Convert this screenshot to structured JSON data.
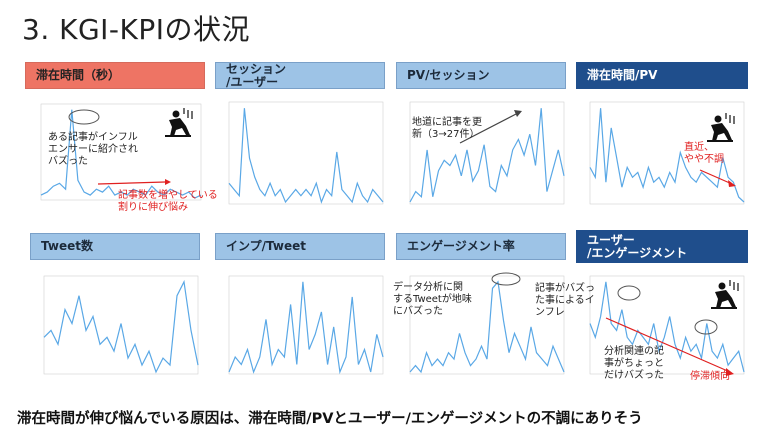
{
  "page": {
    "title": "3. KGI-KPIの状況",
    "footer": "滞在時間が伸び悩んでいる原因は、滞在時間/PVとユーザー/エンゲージメントの不調にありそう"
  },
  "headers": [
    {
      "label": "滞在時間（秒）"
    },
    {
      "label": "セッション\n/ユーザー"
    },
    {
      "label": "PV/セッション"
    },
    {
      "label": "滞在時間/PV"
    },
    {
      "label": "Tweet数"
    },
    {
      "label": "インプ/Tweet"
    },
    {
      "label": "エンゲージメント率"
    },
    {
      "label": "ユーザー\n/エンゲージメント"
    }
  ],
  "annotations": {
    "a1_text": "ある記事がインフル\nエンサーに紹介され\nバズった",
    "a1_red": "記事数を増やしている\n割りに伸び悩み",
    "a3_text": "地道に記事を更\n新（3→27件）",
    "a4_red": "直近、\nやや不調",
    "a7_text1": "データ分析に関\nするTweetが地味\nにバズった",
    "a7_text2": "記事がバズっ\nた事によるイ\nンフレ",
    "a8_text": "分析関連の記\n事がちょっと\nだけバズった",
    "a8_red": "停滞傾向"
  },
  "colors": {
    "line": "#5aa8e6",
    "accent_red": "#e02020",
    "header_light": "#9dc3e6",
    "header_dark": "#1f4e8c",
    "header_red": "#ee7464"
  },
  "icons": [
    "fallen-person-icon",
    "trend-arrow-icon"
  ],
  "chart_data": [
    {
      "type": "line",
      "values": [
        5,
        6,
        8,
        9,
        7,
        34,
        10,
        6,
        5,
        7,
        6,
        8,
        5,
        6,
        5,
        7,
        6,
        5,
        8,
        6,
        5,
        7,
        6,
        5,
        6,
        4,
        5
      ]
    },
    {
      "type": "line",
      "values": [
        6,
        5,
        4,
        18,
        10,
        7,
        5,
        4,
        6,
        4,
        5,
        3,
        4,
        5,
        4,
        5,
        4,
        6,
        3,
        5,
        4,
        11,
        5,
        4,
        3,
        6,
        4,
        3,
        5,
        4,
        3
      ]
    },
    {
      "type": "line",
      "values": [
        4,
        6,
        5,
        14,
        5,
        10,
        12,
        11,
        13,
        9,
        14,
        8,
        10,
        15,
        7,
        6,
        11,
        9,
        14,
        16,
        13,
        17,
        11,
        22,
        6,
        10,
        14,
        9
      ]
    },
    {
      "type": "line",
      "values": [
        10,
        8,
        22,
        7,
        18,
        12,
        6,
        10,
        8,
        9,
        6,
        10,
        7,
        8,
        6,
        9,
        7,
        13,
        10,
        8,
        7,
        9,
        8,
        7,
        6,
        12,
        8,
        7,
        4,
        3
      ]
    },
    {
      "type": "line",
      "values": [
        8,
        9,
        7,
        12,
        10,
        14,
        9,
        11,
        7,
        8,
        6,
        10,
        5,
        7,
        4,
        6,
        3,
        5,
        4,
        14,
        16,
        9,
        4
      ]
    },
    {
      "type": "line",
      "values": [
        3,
        5,
        4,
        6,
        3,
        5,
        10,
        4,
        6,
        5,
        12,
        4,
        15,
        6,
        8,
        11,
        4,
        9,
        3,
        5,
        13,
        4,
        6,
        3,
        8,
        5
      ]
    },
    {
      "type": "line",
      "values": [
        2,
        3,
        2,
        5,
        3,
        4,
        3,
        5,
        4,
        8,
        5,
        3,
        4,
        6,
        4,
        15,
        16,
        10,
        5,
        8,
        6,
        4,
        9,
        5,
        4,
        3,
        6,
        4,
        2
      ]
    },
    {
      "type": "line",
      "values": [
        9,
        7,
        10,
        15,
        9,
        8,
        11,
        7,
        6,
        8,
        7,
        6,
        9,
        5,
        7,
        10,
        6,
        4,
        7,
        5,
        6,
        4,
        9,
        5,
        4,
        6,
        3,
        4,
        5,
        2
      ]
    }
  ]
}
